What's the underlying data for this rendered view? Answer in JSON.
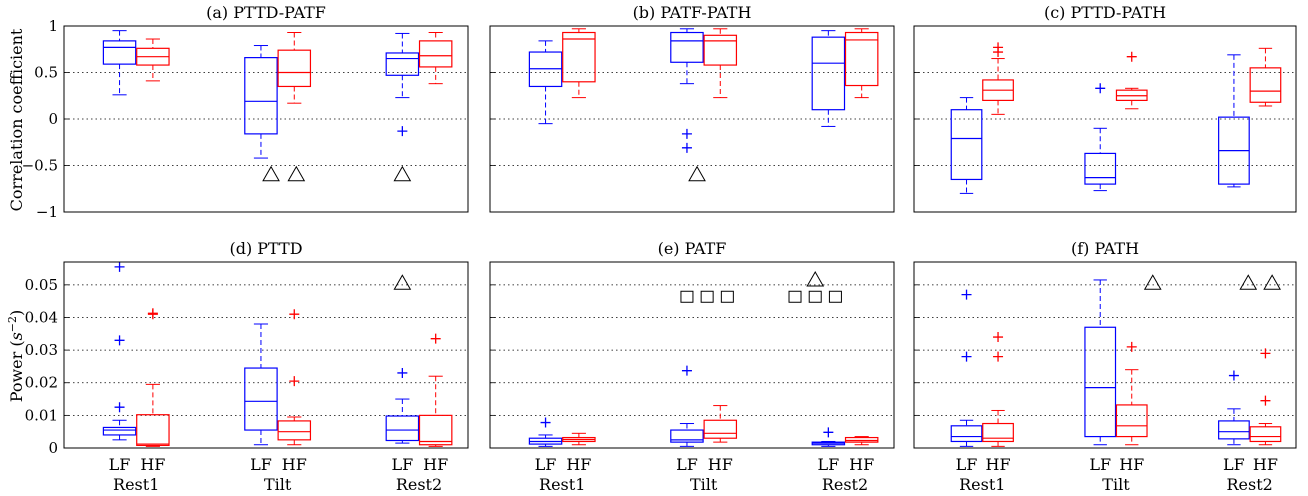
{
  "ylabels": {
    "top": "Correlation coefficient",
    "bottom": "Power ($s^{-2}$)"
  },
  "ylabel_power_prefix": "Power (",
  "ylabel_power_unit_base": "s",
  "ylabel_power_unit_exp": "−2",
  "ylabel_power_suffix": ")",
  "box_labels": [
    "LF",
    "HF"
  ],
  "conditions": [
    "Rest1",
    "Tilt",
    "Rest2"
  ],
  "colors": {
    "LF": "#0000ff",
    "HF": "#ff0000",
    "grid": "#000000",
    "marker": "#000000"
  },
  "chart_data": [
    {
      "type": "box",
      "title": "(a) PTTD-PATF",
      "ylim": [
        -1,
        1
      ],
      "yticks": [
        -1,
        -0.5,
        0,
        0.5,
        1
      ],
      "ytick_labels": [
        "−1",
        "−0.5",
        "0",
        "0.5",
        "1"
      ],
      "groups": [
        {
          "condition": "Rest1",
          "LF": {
            "whislo": 0.26,
            "q1": 0.59,
            "med": 0.77,
            "q3": 0.84,
            "whishi": 0.95,
            "fliers": []
          },
          "HF": {
            "whislo": 0.41,
            "q1": 0.58,
            "med": 0.67,
            "q3": 0.76,
            "whishi": 0.86,
            "fliers": []
          }
        },
        {
          "condition": "Tilt",
          "LF": {
            "whislo": -0.42,
            "q1": -0.16,
            "med": 0.19,
            "q3": 0.66,
            "whishi": 0.79,
            "fliers": []
          },
          "HF": {
            "whislo": 0.17,
            "q1": 0.35,
            "med": 0.5,
            "q3": 0.74,
            "whishi": 0.93,
            "fliers": []
          }
        },
        {
          "condition": "Rest2",
          "LF": {
            "whislo": 0.23,
            "q1": 0.47,
            "med": 0.65,
            "q3": 0.71,
            "whishi": 0.92,
            "fliers": [
              -0.13
            ]
          },
          "HF": {
            "whislo": 0.38,
            "q1": 0.56,
            "med": 0.68,
            "q3": 0.84,
            "whishi": 0.93,
            "fliers": []
          }
        }
      ],
      "markers": [
        {
          "shape": "triangle",
          "x": 2.05,
          "y": -0.6
        },
        {
          "shape": "triangle",
          "x": 2.3,
          "y": -0.6
        },
        {
          "shape": "triangle",
          "x": 3.35,
          "y": -0.6
        }
      ]
    },
    {
      "type": "box",
      "title": "(b) PATF-PATH",
      "ylim": [
        -1,
        1
      ],
      "yticks": [
        -1,
        -0.5,
        0,
        0.5,
        1
      ],
      "ytick_labels": [
        "",
        "",
        "",
        "",
        ""
      ],
      "groups": [
        {
          "condition": "Rest1",
          "LF": {
            "whislo": -0.05,
            "q1": 0.35,
            "med": 0.54,
            "q3": 0.72,
            "whishi": 0.84,
            "fliers": []
          },
          "HF": {
            "whislo": 0.23,
            "q1": 0.4,
            "med": 0.86,
            "q3": 0.93,
            "whishi": 0.97,
            "fliers": []
          }
        },
        {
          "condition": "Tilt",
          "LF": {
            "whislo": 0.38,
            "q1": 0.61,
            "med": 0.84,
            "q3": 0.93,
            "whishi": 0.97,
            "fliers": [
              -0.16,
              -0.31
            ]
          },
          "HF": {
            "whislo": 0.23,
            "q1": 0.58,
            "med": 0.84,
            "q3": 0.9,
            "whishi": 0.97,
            "fliers": []
          }
        },
        {
          "condition": "Rest2",
          "LF": {
            "whislo": -0.08,
            "q1": 0.1,
            "med": 0.6,
            "q3": 0.88,
            "whishi": 0.95,
            "fliers": []
          },
          "HF": {
            "whislo": 0.23,
            "q1": 0.36,
            "med": 0.85,
            "q3": 0.93,
            "whishi": 0.97,
            "fliers": []
          }
        }
      ],
      "markers": [
        {
          "shape": "triangle",
          "x": 2.05,
          "y": -0.6
        }
      ]
    },
    {
      "type": "box",
      "title": "(c) PTTD-PATH",
      "ylim": [
        -1,
        1
      ],
      "yticks": [
        -1,
        -0.5,
        0,
        0.5,
        1
      ],
      "ytick_labels": [
        "",
        "",
        "",
        "",
        ""
      ],
      "groups": [
        {
          "condition": "Rest1",
          "LF": {
            "whislo": -0.8,
            "q1": -0.65,
            "med": -0.21,
            "q3": 0.1,
            "whishi": 0.23,
            "fliers": []
          },
          "HF": {
            "whislo": 0.05,
            "q1": 0.2,
            "med": 0.31,
            "q3": 0.42,
            "whishi": 0.65,
            "fliers": [
              0.77,
              0.72
            ]
          }
        },
        {
          "condition": "Tilt",
          "LF": {
            "whislo": -0.77,
            "q1": -0.7,
            "med": -0.63,
            "q3": -0.37,
            "whishi": -0.1,
            "fliers": [
              0.33
            ]
          },
          "HF": {
            "whislo": 0.11,
            "q1": 0.2,
            "med": 0.25,
            "q3": 0.31,
            "whishi": 0.33,
            "fliers": [
              0.67
            ]
          }
        },
        {
          "condition": "Rest2",
          "LF": {
            "whislo": -0.73,
            "q1": -0.7,
            "med": -0.34,
            "q3": 0.02,
            "whishi": 0.69,
            "fliers": []
          },
          "HF": {
            "whislo": 0.14,
            "q1": 0.18,
            "med": 0.3,
            "q3": 0.55,
            "whishi": 0.76,
            "fliers": []
          }
        }
      ],
      "markers": []
    },
    {
      "type": "box",
      "title": "(d) PTTD",
      "ylim": [
        0,
        0.057
      ],
      "yticks": [
        0,
        0.01,
        0.02,
        0.03,
        0.04,
        0.05
      ],
      "ytick_labels": [
        "0",
        "0.01",
        "0.02",
        "0.03",
        "0.04",
        "0.05"
      ],
      "groups": [
        {
          "condition": "Rest1",
          "LF": {
            "whislo": 0.0025,
            "q1": 0.004,
            "med": 0.0055,
            "q3": 0.0063,
            "whishi": 0.0085,
            "fliers": [
              0.0125,
              0.033,
              0.0555
            ]
          },
          "HF": {
            "whislo": 0.0005,
            "q1": 0.0008,
            "med": 0.0012,
            "q3": 0.0102,
            "whishi": 0.0195,
            "fliers": [
              0.041,
              0.0413
            ]
          }
        },
        {
          "condition": "Tilt",
          "LF": {
            "whislo": 0.001,
            "q1": 0.0055,
            "med": 0.0143,
            "q3": 0.0245,
            "whishi": 0.038,
            "fliers": []
          },
          "HF": {
            "whislo": 0.001,
            "q1": 0.0025,
            "med": 0.005,
            "q3": 0.0083,
            "whishi": 0.0095,
            "fliers": [
              0.0205,
              0.041
            ]
          }
        },
        {
          "condition": "Rest2",
          "LF": {
            "whislo": 0.0015,
            "q1": 0.0023,
            "med": 0.0055,
            "q3": 0.0098,
            "whishi": 0.015,
            "fliers": [
              0.023
            ]
          },
          "HF": {
            "whislo": 0.0005,
            "q1": 0.001,
            "med": 0.002,
            "q3": 0.01,
            "whishi": 0.022,
            "fliers": [
              0.0335
            ]
          }
        }
      ],
      "markers": [
        {
          "shape": "triangle",
          "x": 3.35,
          "y": 0.0505
        }
      ]
    },
    {
      "type": "box",
      "title": "(e) PATF",
      "ylim": [
        0,
        0.057
      ],
      "yticks": [
        0,
        0.01,
        0.02,
        0.03,
        0.04,
        0.05
      ],
      "ytick_labels": [
        "",
        "",
        "",
        "",
        "",
        ""
      ],
      "groups": [
        {
          "condition": "Rest1",
          "LF": {
            "whislo": 0.0005,
            "q1": 0.0012,
            "med": 0.002,
            "q3": 0.003,
            "whishi": 0.004,
            "fliers": [
              0.0078
            ]
          },
          "HF": {
            "whislo": 0.001,
            "q1": 0.002,
            "med": 0.0026,
            "q3": 0.0032,
            "whishi": 0.0045,
            "fliers": []
          }
        },
        {
          "condition": "Tilt",
          "LF": {
            "whislo": 0.0005,
            "q1": 0.0018,
            "med": 0.0025,
            "q3": 0.0055,
            "whishi": 0.0075,
            "fliers": [
              0.0237
            ]
          },
          "HF": {
            "whislo": 0.0018,
            "q1": 0.003,
            "med": 0.0045,
            "q3": 0.0085,
            "whishi": 0.013,
            "fliers": []
          }
        },
        {
          "condition": "Rest2",
          "LF": {
            "whislo": 0.0005,
            "q1": 0.001,
            "med": 0.0015,
            "q3": 0.0018,
            "whishi": 0.002,
            "fliers": [
              0.0048
            ]
          },
          "HF": {
            "whislo": 0.001,
            "q1": 0.0018,
            "med": 0.0023,
            "q3": 0.0032,
            "whishi": 0.0035,
            "fliers": []
          }
        }
      ],
      "markers": [
        {
          "shape": "square",
          "x": 1.95,
          "y": 0.0465
        },
        {
          "shape": "square",
          "x": 2.15,
          "y": 0.0465
        },
        {
          "shape": "square",
          "x": 2.35,
          "y": 0.0465
        },
        {
          "shape": "triangle",
          "x": 3.22,
          "y": 0.0515
        },
        {
          "shape": "square",
          "x": 3.02,
          "y": 0.0465
        },
        {
          "shape": "square",
          "x": 3.22,
          "y": 0.0465
        },
        {
          "shape": "square",
          "x": 3.42,
          "y": 0.0465
        }
      ]
    },
    {
      "type": "box",
      "title": "(f) PATH",
      "ylim": [
        0,
        0.057
      ],
      "yticks": [
        0,
        0.01,
        0.02,
        0.03,
        0.04,
        0.05
      ],
      "ytick_labels": [
        "",
        "",
        "",
        "",
        "",
        ""
      ],
      "groups": [
        {
          "condition": "Rest1",
          "LF": {
            "whislo": 0.0005,
            "q1": 0.002,
            "med": 0.0035,
            "q3": 0.0068,
            "whishi": 0.0085,
            "fliers": [
              0.028,
              0.047
            ]
          },
          "HF": {
            "whislo": 0.0005,
            "q1": 0.002,
            "med": 0.003,
            "q3": 0.0075,
            "whishi": 0.0115,
            "fliers": [
              0.028,
              0.034
            ]
          }
        },
        {
          "condition": "Tilt",
          "LF": {
            "whislo": 0.001,
            "q1": 0.0035,
            "med": 0.0185,
            "q3": 0.037,
            "whishi": 0.0515,
            "fliers": []
          },
          "HF": {
            "whislo": 0.001,
            "q1": 0.0035,
            "med": 0.0068,
            "q3": 0.0132,
            "whishi": 0.024,
            "fliers": [
              0.031
            ]
          }
        },
        {
          "condition": "Rest2",
          "LF": {
            "whislo": 0.001,
            "q1": 0.0028,
            "med": 0.005,
            "q3": 0.0083,
            "whishi": 0.012,
            "fliers": [
              0.0222
            ]
          },
          "HF": {
            "whislo": 0.001,
            "q1": 0.002,
            "med": 0.0035,
            "q3": 0.0065,
            "whishi": 0.0075,
            "fliers": [
              0.0145,
              0.029
            ]
          }
        }
      ],
      "markers": [
        {
          "shape": "triangle",
          "x": 2.5,
          "y": 0.0505
        },
        {
          "shape": "triangle",
          "x": 3.5,
          "y": 0.0505
        },
        {
          "shape": "triangle",
          "x": 3.75,
          "y": 0.0505
        }
      ]
    }
  ]
}
